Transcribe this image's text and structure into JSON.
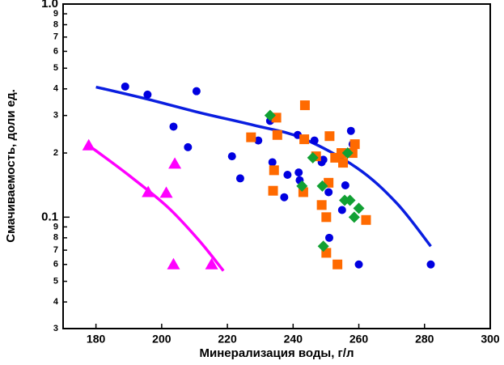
{
  "chart_data": {
    "type": "scatter",
    "x_label": "Минерализация воды, г/л",
    "y_label": "Смачиваемость, доли ед.",
    "xlim": [
      170,
      300
    ],
    "xticks": [
      180,
      200,
      220,
      240,
      260,
      280,
      300
    ],
    "ylim": [
      0.03,
      1.0
    ],
    "log_y": true,
    "yticks": [
      {
        "value": 0.03,
        "label": "3"
      },
      {
        "value": 0.04,
        "label": "4"
      },
      {
        "value": 0.05,
        "label": "5"
      },
      {
        "value": 0.06,
        "label": "6"
      },
      {
        "value": 0.07,
        "label": "7"
      },
      {
        "value": 0.08,
        "label": "8"
      },
      {
        "value": 0.09,
        "label": "9"
      },
      0.1,
      {
        "value": 0.2,
        "label": "2"
      },
      {
        "value": 0.3,
        "label": "3"
      },
      {
        "value": 0.4,
        "label": "4"
      },
      {
        "value": 0.5,
        "label": "5"
      },
      {
        "value": 0.6,
        "label": "6"
      },
      {
        "value": 0.7,
        "label": "7"
      },
      {
        "value": 0.8,
        "label": "8"
      },
      {
        "value": 0.9,
        "label": "9"
      },
      {
        "value": 1.0,
        "label": "1.0"
      }
    ],
    "series": [
      {
        "mode": "marker",
        "marker": "circle",
        "color": "#0000e0",
        "x": [
          188.9,
          195.7,
          203.6,
          208,
          210.6,
          221.4,
          223.9,
          229.4,
          233,
          233.7,
          237.3,
          238.3,
          241.4,
          241.7,
          242,
          246.5,
          248.7,
          249.2,
          250.8,
          251,
          254.9,
          255.9,
          257.6,
          258.1,
          260,
          281.9
        ],
        "values": [
          0.41,
          0.376,
          0.266,
          0.213,
          0.39,
          0.193,
          0.152,
          0.229,
          0.283,
          0.181,
          0.124,
          0.158,
          0.243,
          0.162,
          0.149,
          0.229,
          0.181,
          0.186,
          0.131,
          0.08,
          0.108,
          0.141,
          0.254,
          0.22,
          0.06,
          0.06
        ]
      },
      {
        "mode": "marker",
        "marker": "square",
        "color": "#ff6a00",
        "x": [
          243.6,
          234.9,
          227.2,
          235.2,
          243.4,
          251.1,
          234.2,
          233.9,
          243.1,
          247,
          250.8,
          248.7,
          250.1,
          252.8,
          255.2,
          254.7,
          258.1,
          258.8,
          262.2,
          250.1,
          253.5
        ],
        "values": [
          0.335,
          0.293,
          0.237,
          0.243,
          0.232,
          0.24,
          0.166,
          0.133,
          0.131,
          0.193,
          0.145,
          0.114,
          0.1,
          0.19,
          0.18,
          0.2,
          0.2,
          0.22,
          0.097,
          0.068,
          0.06
        ]
      },
      {
        "mode": "marker",
        "marker": "diamond",
        "color": "#11a033",
        "x": [
          233,
          246,
          242.7,
          248.9,
          256.6,
          255.7,
          257.3,
          260,
          258.6,
          249.2
        ],
        "values": [
          0.3,
          0.19,
          0.14,
          0.14,
          0.2,
          0.12,
          0.12,
          0.11,
          0.1,
          0.073
        ]
      },
      {
        "mode": "marker",
        "marker": "triangle",
        "color": "#ff00ff",
        "x": [
          177.8,
          195.9,
          201.4,
          204,
          203.6,
          215.2
        ],
        "values": [
          0.217,
          0.131,
          0.13,
          0.178,
          0.06,
          0.06
        ]
      },
      {
        "mode": "line",
        "color": "#0a1ee0",
        "x": [
          180,
          195,
          211.3,
          228,
          242.7,
          259.5,
          271.6,
          281.9
        ],
        "values": [
          0.408,
          0.36,
          0.31,
          0.27,
          0.235,
          0.17,
          0.116,
          0.073
        ]
      },
      {
        "mode": "line",
        "color": "#ff00ff",
        "x": [
          177.8,
          189.6,
          201.7,
          211.3,
          218.8
        ],
        "values": [
          0.217,
          0.159,
          0.112,
          0.078,
          0.056
        ]
      }
    ]
  }
}
